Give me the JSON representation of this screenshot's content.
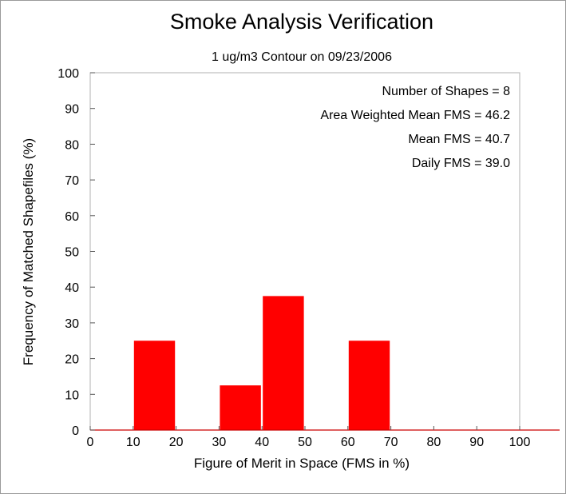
{
  "chart_data": {
    "type": "bar",
    "title": "Smoke Analysis Verification",
    "subtitle": "1 ug/m3 Contour on 09/23/2006",
    "xlabel": "Figure of Merit in Space (FMS in %)",
    "ylabel": "Frequency of Matched Shapefiles (%)",
    "xlim": [
      0,
      100
    ],
    "ylim": [
      0,
      100
    ],
    "xticks": [
      "0",
      "10",
      "20",
      "30",
      "40",
      "50",
      "60",
      "70",
      "80",
      "90",
      "100"
    ],
    "yticks": [
      "0",
      "10",
      "20",
      "30",
      "40",
      "50",
      "60",
      "70",
      "80",
      "90",
      "100"
    ],
    "bins": [
      {
        "start": 10,
        "end": 19,
        "value": 25.0
      },
      {
        "start": 30,
        "end": 39,
        "value": 12.5
      },
      {
        "start": 40,
        "end": 49,
        "value": 37.5
      },
      {
        "start": 60,
        "end": 69,
        "value": 25.0
      }
    ],
    "grid": false,
    "bar_color": "#ff0000",
    "baseline_color": "#cc0000",
    "stats": [
      "Number of Shapes = 8",
      "Area Weighted Mean FMS = 46.2",
      "Mean FMS = 40.7",
      "Daily FMS = 39.0"
    ]
  }
}
